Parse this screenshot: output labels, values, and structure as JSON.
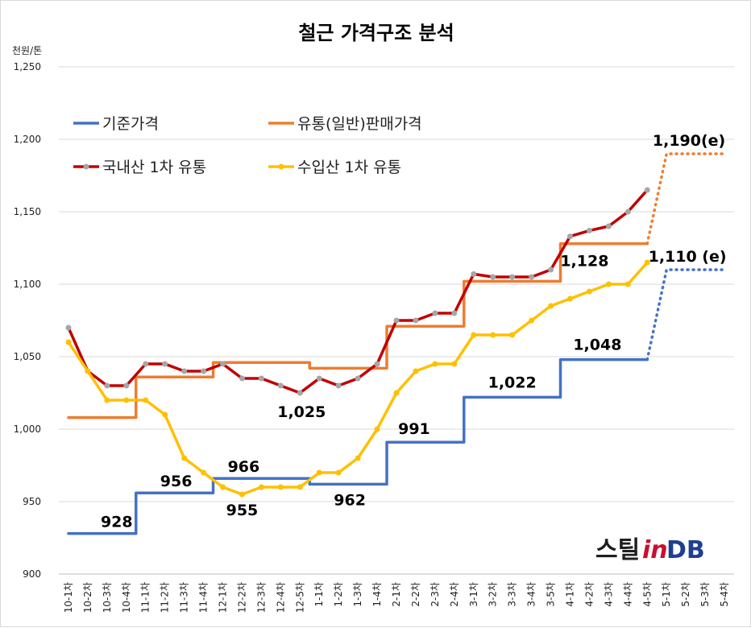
{
  "chart_data": {
    "type": "line",
    "title": "철근 가격구조 분석",
    "unit": "천원/톤",
    "ylim": [
      900,
      1250
    ],
    "yticks": [
      "900",
      "950",
      "1,000",
      "1,050",
      "1,100",
      "1,150",
      "1,200",
      "1,250"
    ],
    "grid": true,
    "legend_position": "top-left",
    "categories": [
      "10-1차",
      "10-2차",
      "10-3차",
      "10-4차",
      "11-1차",
      "11-2차",
      "11-3차",
      "11-4차",
      "12-1차",
      "12-2차",
      "12-3차",
      "12-4차",
      "12-5차",
      "1-1차",
      "1-2차",
      "1-3차",
      "1-4차",
      "2-1차",
      "2-2차",
      "2-3차",
      "2-4차",
      "3-1차",
      "3-2차",
      "3-3차",
      "3-4차",
      "3-5차",
      "4-1차",
      "4-2차",
      "4-3차",
      "4-4차",
      "4-5차",
      "5-1차",
      "5-2차",
      "5-3차",
      "5-4차"
    ],
    "series": [
      {
        "name": "기준가격",
        "color": "#4472c4",
        "style": "step",
        "values": [
          928,
          928,
          928,
          928,
          956,
          956,
          956,
          956,
          966,
          966,
          966,
          966,
          966,
          962,
          962,
          962,
          962,
          991,
          991,
          991,
          991,
          1022,
          1022,
          1022,
          1022,
          1022,
          1048,
          1048,
          1048,
          1048,
          1048,
          null,
          null,
          null,
          null
        ],
        "forecast": [
          null,
          null,
          null,
          null,
          null,
          null,
          null,
          null,
          null,
          null,
          null,
          null,
          null,
          null,
          null,
          null,
          null,
          null,
          null,
          null,
          null,
          null,
          null,
          null,
          null,
          null,
          null,
          null,
          null,
          null,
          1048,
          1110,
          1110,
          1110,
          1110
        ]
      },
      {
        "name": "유통(일반)판매가격",
        "color": "#ed7d31",
        "style": "step",
        "values": [
          1008,
          1008,
          1008,
          1008,
          1036,
          1036,
          1036,
          1036,
          1046,
          1046,
          1046,
          1046,
          1046,
          1042,
          1042,
          1042,
          1042,
          1071,
          1071,
          1071,
          1071,
          1102,
          1102,
          1102,
          1102,
          1102,
          1128,
          1128,
          1128,
          1128,
          1128,
          null,
          null,
          null,
          null
        ],
        "forecast": [
          null,
          null,
          null,
          null,
          null,
          null,
          null,
          null,
          null,
          null,
          null,
          null,
          null,
          null,
          null,
          null,
          null,
          null,
          null,
          null,
          null,
          null,
          null,
          null,
          null,
          null,
          null,
          null,
          null,
          null,
          1128,
          1190,
          1190,
          1190,
          1190
        ]
      },
      {
        "name": "국내산 1차 유통",
        "color": "#c00000",
        "marker": "#a6a6a6",
        "style": "line",
        "values": [
          1070,
          1040,
          1030,
          1030,
          1045,
          1045,
          1040,
          1040,
          1045,
          1035,
          1035,
          1030,
          1025,
          1035,
          1030,
          1035,
          1045,
          1075,
          1075,
          1080,
          1080,
          1107,
          1105,
          1105,
          1105,
          1110,
          1133,
          1137,
          1140,
          1150,
          1165,
          null,
          null,
          null,
          null
        ]
      },
      {
        "name": "수입산 1차 유통",
        "color": "#ffc000",
        "marker": "#ffc000",
        "style": "line",
        "values": [
          1060,
          1040,
          1020,
          1020,
          1020,
          1010,
          980,
          970,
          960,
          955,
          960,
          960,
          960,
          970,
          970,
          980,
          1000,
          1025,
          1040,
          1045,
          1045,
          1065,
          1065,
          1065,
          1075,
          1085,
          1090,
          1095,
          1100,
          1100,
          1115,
          null,
          null,
          null,
          null
        ]
      }
    ],
    "annotations": [
      {
        "text": "928",
        "x": "10-4차",
        "y": 928
      },
      {
        "text": "956",
        "x": "11-3차",
        "y": 956
      },
      {
        "text": "966",
        "x": "12-3차",
        "y": 966
      },
      {
        "text": "955",
        "x": "12-2차",
        "y": 955
      },
      {
        "text": "962",
        "x": "1-3차",
        "y": 962
      },
      {
        "text": "1,025",
        "x": "12-5차",
        "y": 1025
      },
      {
        "text": "991",
        "x": "2-2차",
        "y": 991
      },
      {
        "text": "1,022",
        "x": "3-3차",
        "y": 1022
      },
      {
        "text": "1,048",
        "x": "4-3차",
        "y": 1048
      },
      {
        "text": "1,128",
        "x": "4-3차",
        "y": 1128
      },
      {
        "text": "1,110 (e)",
        "x": "5-3차",
        "y": 1110
      },
      {
        "text": "1,190(e)",
        "x": "5-3차",
        "y": 1190
      }
    ]
  },
  "logo": {
    "part1": "스틸",
    "part2": "in",
    "part3": "DB"
  }
}
